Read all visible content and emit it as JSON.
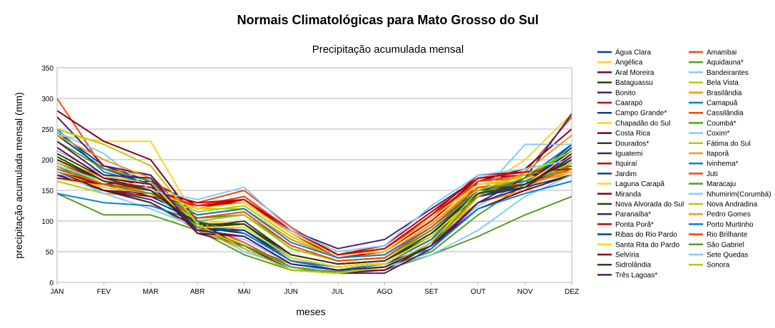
{
  "chart_data": {
    "type": "line",
    "title": "Normais Climatológicas para Mato Grosso do Sul",
    "subtitle": "Precipitação acumulada mensal",
    "xlabel": "meses",
    "ylabel": "precipitação acumulada mensal (mm)",
    "ylim": [
      0,
      350
    ],
    "yticks": [
      0,
      50,
      100,
      150,
      200,
      250,
      300,
      350
    ],
    "grid": true,
    "legend_position": "right",
    "categories": [
      "JAN",
      "FEV",
      "MAR",
      "ABR",
      "MAI",
      "JUN",
      "JUL",
      "AGO",
      "SET",
      "OUT",
      "NOV",
      "DEZ"
    ],
    "series": [
      {
        "name": "Água Clara",
        "color": "#004586",
        "values": [
          245,
          190,
          165,
          90,
          95,
          40,
          25,
          30,
          70,
          150,
          160,
          220
        ]
      },
      {
        "name": "Amambai",
        "color": "#ff420e",
        "values": [
          200,
          165,
          150,
          130,
          150,
          90,
          45,
          55,
          110,
          165,
          170,
          190
        ]
      },
      {
        "name": "Angélica",
        "color": "#ffd320",
        "values": [
          185,
          160,
          150,
          100,
          95,
          45,
          30,
          30,
          75,
          130,
          150,
          195
        ]
      },
      {
        "name": "Aquidauna*",
        "color": "#579d1c",
        "values": [
          190,
          150,
          130,
          85,
          60,
          30,
          20,
          25,
          50,
          110,
          160,
          190
        ]
      },
      {
        "name": "Aral Moreira",
        "color": "#7e0021",
        "values": [
          175,
          160,
          165,
          125,
          130,
          80,
          45,
          50,
          105,
          170,
          175,
          180
        ]
      },
      {
        "name": "Bandeirantes",
        "color": "#83caff",
        "values": [
          215,
          175,
          150,
          85,
          70,
          30,
          20,
          30,
          60,
          125,
          165,
          205
        ]
      },
      {
        "name": "Bataguassu",
        "color": "#314004",
        "values": [
          210,
          170,
          150,
          90,
          100,
          45,
          30,
          35,
          75,
          140,
          155,
          200
        ]
      },
      {
        "name": "Bela Vista",
        "color": "#aecf00",
        "values": [
          165,
          145,
          140,
          120,
          120,
          70,
          40,
          45,
          90,
          155,
          165,
          175
        ]
      },
      {
        "name": "Bonito",
        "color": "#4b1f6f",
        "values": [
          190,
          160,
          140,
          105,
          110,
          55,
          35,
          40,
          85,
          145,
          160,
          185
        ]
      },
      {
        "name": "Brasilândia",
        "color": "#ff950e",
        "values": [
          200,
          170,
          160,
          85,
          90,
          40,
          25,
          30,
          70,
          130,
          150,
          205
        ]
      },
      {
        "name": "Caarapó",
        "color": "#c5000b",
        "values": [
          195,
          165,
          155,
          120,
          135,
          80,
          40,
          50,
          100,
          165,
          175,
          190
        ]
      },
      {
        "name": "Camapuã",
        "color": "#0084d1",
        "values": [
          250,
          180,
          160,
          90,
          80,
          35,
          20,
          30,
          70,
          145,
          170,
          225
        ]
      },
      {
        "name": "Campo Grande*",
        "color": "#004586",
        "values": [
          240,
          185,
          160,
          90,
          85,
          35,
          25,
          30,
          75,
          140,
          160,
          225
        ]
      },
      {
        "name": "Cassilândia",
        "color": "#ff420e",
        "values": [
          300,
          185,
          175,
          95,
          65,
          25,
          15,
          25,
          65,
          140,
          180,
          270
        ]
      },
      {
        "name": "Chapadão do Sul",
        "color": "#ffd320",
        "values": [
          240,
          230,
          230,
          100,
          60,
          20,
          15,
          20,
          60,
          150,
          200,
          275
        ]
      },
      {
        "name": "Coumbá*",
        "color": "#579d1c",
        "values": [
          145,
          110,
          110,
          85,
          45,
          20,
          18,
          20,
          45,
          75,
          110,
          140
        ]
      },
      {
        "name": "Costa Rica",
        "color": "#7e0021",
        "values": [
          280,
          230,
          200,
          100,
          55,
          20,
          15,
          20,
          60,
          165,
          185,
          250
        ]
      },
      {
        "name": "Coxim*",
        "color": "#83caff",
        "values": [
          245,
          210,
          150,
          85,
          55,
          20,
          15,
          25,
          60,
          140,
          225,
          225
        ]
      },
      {
        "name": "Dourados*",
        "color": "#314004",
        "values": [
          180,
          160,
          145,
          110,
          120,
          70,
          40,
          45,
          95,
          155,
          160,
          180
        ]
      },
      {
        "name": "Fátima do Sul",
        "color": "#aecf00",
        "values": [
          185,
          160,
          150,
          115,
          125,
          75,
          40,
          45,
          95,
          160,
          165,
          185
        ]
      },
      {
        "name": "Iguatemi",
        "color": "#4b1f6f",
        "values": [
          175,
          150,
          145,
          125,
          140,
          85,
          55,
          70,
          120,
          170,
          180,
          185
        ]
      },
      {
        "name": "Itaporã",
        "color": "#ff950e",
        "values": [
          180,
          155,
          145,
          110,
          120,
          70,
          40,
          45,
          95,
          155,
          160,
          180
        ]
      },
      {
        "name": "Itquiraí",
        "color": "#c5000b",
        "values": [
          180,
          150,
          140,
          125,
          135,
          85,
          45,
          60,
          115,
          170,
          180,
          190
        ]
      },
      {
        "name": "Ivinhema*",
        "color": "#0084d1",
        "values": [
          190,
          160,
          150,
          110,
          120,
          65,
          40,
          45,
          90,
          150,
          165,
          195
        ]
      },
      {
        "name": "Jardim",
        "color": "#004586",
        "values": [
          175,
          150,
          135,
          100,
          110,
          55,
          35,
          40,
          80,
          140,
          155,
          175
        ]
      },
      {
        "name": "Juti",
        "color": "#ff420e",
        "values": [
          185,
          160,
          150,
          125,
          140,
          85,
          45,
          55,
          105,
          165,
          175,
          190
        ]
      },
      {
        "name": "Laguna Carapã",
        "color": "#ffd320",
        "values": [
          170,
          155,
          150,
          120,
          130,
          80,
          45,
          50,
          105,
          160,
          170,
          180
        ]
      },
      {
        "name": "Maracaju",
        "color": "#579d1c",
        "values": [
          190,
          160,
          145,
          105,
          110,
          60,
          35,
          40,
          85,
          150,
          160,
          190
        ]
      },
      {
        "name": "Miranda",
        "color": "#7e0021",
        "values": [
          180,
          150,
          130,
          90,
          80,
          35,
          25,
          30,
          60,
          120,
          150,
          175
        ]
      },
      {
        "name": "Nhumirim(Corumbá)",
        "color": "#83caff",
        "values": [
          180,
          145,
          120,
          90,
          50,
          25,
          20,
          25,
          45,
          85,
          140,
          175
        ]
      },
      {
        "name": "Nova Alvorada do Sul",
        "color": "#314004",
        "values": [
          200,
          165,
          150,
          90,
          95,
          45,
          30,
          35,
          80,
          145,
          155,
          200
        ]
      },
      {
        "name": "Nova Andradina",
        "color": "#aecf00",
        "values": [
          195,
          160,
          150,
          100,
          110,
          55,
          35,
          40,
          80,
          145,
          160,
          195
        ]
      },
      {
        "name": "Paranaíba*",
        "color": "#4b1f6f",
        "values": [
          270,
          190,
          175,
          80,
          60,
          20,
          15,
          15,
          55,
          130,
          170,
          275
        ]
      },
      {
        "name": "Pedro Gomes",
        "color": "#ff950e",
        "values": [
          240,
          200,
          170,
          85,
          55,
          20,
          15,
          25,
          60,
          140,
          180,
          240
        ]
      },
      {
        "name": "Ponta Porã*",
        "color": "#c5000b",
        "values": [
          170,
          160,
          150,
          130,
          135,
          85,
          45,
          55,
          110,
          175,
          180,
          185
        ]
      },
      {
        "name": "Porto Murtinho",
        "color": "#0084d1",
        "values": [
          145,
          130,
          125,
          100,
          80,
          35,
          25,
          30,
          55,
          120,
          145,
          165
        ]
      },
      {
        "name": "Ribas do Rio Pardo",
        "color": "#004586",
        "values": [
          230,
          175,
          160,
          85,
          85,
          40,
          25,
          30,
          75,
          150,
          160,
          215
        ]
      },
      {
        "name": "Rio Brilhante",
        "color": "#ff420e",
        "values": [
          185,
          160,
          150,
          105,
          115,
          60,
          35,
          40,
          90,
          155,
          160,
          185
        ]
      },
      {
        "name": "Santa Rita do Pardo",
        "color": "#ffd320",
        "values": [
          230,
          175,
          160,
          90,
          90,
          40,
          25,
          30,
          75,
          145,
          160,
          210
        ]
      },
      {
        "name": "São Gabriel",
        "color": "#579d1c",
        "values": [
          230,
          185,
          165,
          90,
          60,
          25,
          15,
          25,
          60,
          145,
          170,
          215
        ]
      },
      {
        "name": "Selvíria",
        "color": "#7e0021",
        "values": [
          220,
          170,
          160,
          80,
          75,
          30,
          20,
          25,
          60,
          130,
          155,
          210
        ]
      },
      {
        "name": "Sete Quedas",
        "color": "#83caff",
        "values": [
          190,
          165,
          150,
          135,
          155,
          85,
          50,
          60,
          125,
          175,
          185,
          200
        ]
      },
      {
        "name": "Sidrolândia",
        "color": "#314004",
        "values": [
          205,
          165,
          150,
          95,
          95,
          45,
          30,
          35,
          80,
          145,
          160,
          200
        ]
      },
      {
        "name": "Sonora",
        "color": "#aecf00",
        "values": [
          250,
          225,
          190,
          95,
          55,
          20,
          15,
          25,
          65,
          150,
          175,
          215
        ]
      },
      {
        "name": "Três Lagoas*",
        "color": "#4b1f6f",
        "values": [
          230,
          175,
          170,
          85,
          75,
          30,
          20,
          25,
          60,
          130,
          155,
          205
        ]
      }
    ]
  }
}
